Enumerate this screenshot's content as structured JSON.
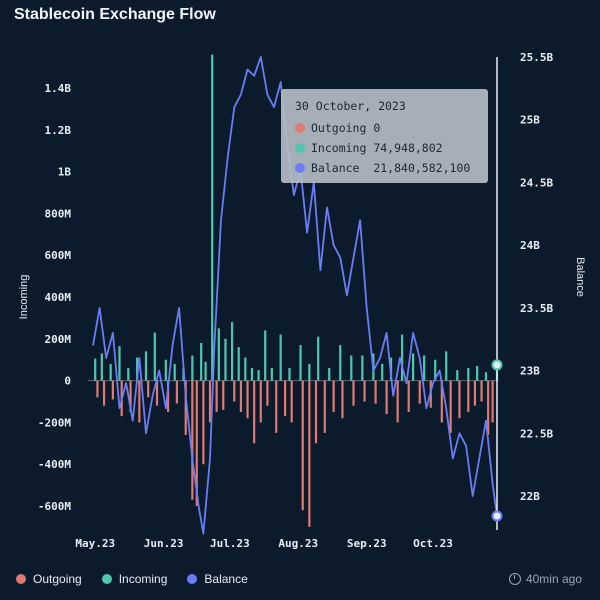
{
  "header": {
    "title": "Stablecoin Exchange Flow"
  },
  "colors": {
    "outgoing": "#e07a73",
    "incoming": "#4fc7b0",
    "balance": "#6a7df5",
    "background": "#0b1b2b"
  },
  "tooltip": {
    "date": "30 October, 2023",
    "rows": [
      {
        "label": "Outgoing",
        "value": "0",
        "color": "#e07a73"
      },
      {
        "label": "Incoming",
        "value": "74,948,802",
        "color": "#4fc7b0"
      },
      {
        "label": "Balance",
        "value": "21,840,582,100",
        "color": "#6a7df5"
      }
    ]
  },
  "legend": {
    "items": [
      {
        "label": "Outgoing",
        "color": "#e07a73"
      },
      {
        "label": "Incoming",
        "color": "#4fc7b0"
      },
      {
        "label": "Balance",
        "color": "#6a7df5"
      }
    ]
  },
  "footer": {
    "updated": "40min ago"
  },
  "chart_data": {
    "type": "bar",
    "title": "Stablecoin Exchange Flow",
    "ylabel": "Incoming",
    "y2label": "Balance",
    "ylim": [
      -700000000,
      1550000000
    ],
    "y2lim": [
      21700000000,
      25500000000
    ],
    "yticks": [
      {
        "v": 1400000000,
        "l": "1.4B"
      },
      {
        "v": 1200000000,
        "l": "1.2B"
      },
      {
        "v": 1000000000,
        "l": "1B"
      },
      {
        "v": 800000000,
        "l": "800M"
      },
      {
        "v": 600000000,
        "l": "600M"
      },
      {
        "v": 400000000,
        "l": "400M"
      },
      {
        "v": 200000000,
        "l": "200M"
      },
      {
        "v": 0,
        "l": "0"
      },
      {
        "v": -200000000,
        "l": "-200M"
      },
      {
        "v": -400000000,
        "l": "-400M"
      },
      {
        "v": -600000000,
        "l": "-600M"
      }
    ],
    "y2ticks": [
      {
        "v": 25500000000,
        "l": "25.5B"
      },
      {
        "v": 25000000000,
        "l": "25B"
      },
      {
        "v": 24500000000,
        "l": "24.5B"
      },
      {
        "v": 24000000000,
        "l": "24B"
      },
      {
        "v": 23500000000,
        "l": "23.5B"
      },
      {
        "v": 23000000000,
        "l": "23B"
      },
      {
        "v": 22500000000,
        "l": "22.5B"
      },
      {
        "v": 22000000000,
        "l": "22B"
      }
    ],
    "xticks": [
      {
        "x": "2023-05-01",
        "l": "May.23"
      },
      {
        "x": "2023-06-01",
        "l": "Jun.23"
      },
      {
        "x": "2023-07-01",
        "l": "Jul.23"
      },
      {
        "x": "2023-08-01",
        "l": "Aug.23"
      },
      {
        "x": "2023-09-01",
        "l": "Sep.23"
      },
      {
        "x": "2023-10-01",
        "l": "Oct.23"
      }
    ],
    "xrange": [
      "2023-04-30",
      "2023-10-30"
    ],
    "highlight": {
      "x": "2023-10-30",
      "incoming": 74948802,
      "outgoing": 0,
      "balance": 21840582100
    },
    "series": [
      {
        "name": "Incoming",
        "type": "bar",
        "points": [
          [
            "2023-05-01",
            105000000
          ],
          [
            "2023-05-04",
            130000000
          ],
          [
            "2023-05-08",
            80000000
          ],
          [
            "2023-05-12",
            165000000
          ],
          [
            "2023-05-16",
            60000000
          ],
          [
            "2023-05-20",
            110000000
          ],
          [
            "2023-05-24",
            140000000
          ],
          [
            "2023-05-28",
            230000000
          ],
          [
            "2023-06-02",
            100000000
          ],
          [
            "2023-06-06",
            80000000
          ],
          [
            "2023-06-10",
            60000000
          ],
          [
            "2023-06-14",
            120000000
          ],
          [
            "2023-06-18",
            180000000
          ],
          [
            "2023-06-20",
            90000000
          ],
          [
            "2023-06-23",
            1560000000
          ],
          [
            "2023-06-26",
            250000000
          ],
          [
            "2023-06-29",
            200000000
          ],
          [
            "2023-07-02",
            280000000
          ],
          [
            "2023-07-05",
            160000000
          ],
          [
            "2023-07-08",
            110000000
          ],
          [
            "2023-07-11",
            60000000
          ],
          [
            "2023-07-14",
            50000000
          ],
          [
            "2023-07-17",
            240000000
          ],
          [
            "2023-07-20",
            60000000
          ],
          [
            "2023-07-24",
            220000000
          ],
          [
            "2023-07-28",
            60000000
          ],
          [
            "2023-08-02",
            170000000
          ],
          [
            "2023-08-06",
            80000000
          ],
          [
            "2023-08-10",
            210000000
          ],
          [
            "2023-08-15",
            60000000
          ],
          [
            "2023-08-20",
            170000000
          ],
          [
            "2023-08-25",
            120000000
          ],
          [
            "2023-08-30",
            120000000
          ],
          [
            "2023-09-04",
            130000000
          ],
          [
            "2023-09-08",
            80000000
          ],
          [
            "2023-09-12",
            110000000
          ],
          [
            "2023-09-17",
            220000000
          ],
          [
            "2023-09-22",
            130000000
          ],
          [
            "2023-09-27",
            120000000
          ],
          [
            "2023-10-02",
            100000000
          ],
          [
            "2023-10-07",
            140000000
          ],
          [
            "2023-10-12",
            50000000
          ],
          [
            "2023-10-17",
            60000000
          ],
          [
            "2023-10-21",
            70000000
          ],
          [
            "2023-10-25",
            40000000
          ],
          [
            "2023-10-30",
            74948802
          ]
        ]
      },
      {
        "name": "Outgoing",
        "type": "bar",
        "points": [
          [
            "2023-05-02",
            -80000000
          ],
          [
            "2023-05-05",
            -120000000
          ],
          [
            "2023-05-09",
            -90000000
          ],
          [
            "2023-05-13",
            -170000000
          ],
          [
            "2023-05-17",
            -150000000
          ],
          [
            "2023-05-21",
            -200000000
          ],
          [
            "2023-05-25",
            -80000000
          ],
          [
            "2023-05-29",
            -120000000
          ],
          [
            "2023-06-03",
            -150000000
          ],
          [
            "2023-06-07",
            -110000000
          ],
          [
            "2023-06-11",
            -260000000
          ],
          [
            "2023-06-14",
            -570000000
          ],
          [
            "2023-06-16",
            -600000000
          ],
          [
            "2023-06-19",
            -400000000
          ],
          [
            "2023-06-22",
            -200000000
          ],
          [
            "2023-06-25",
            -150000000
          ],
          [
            "2023-06-28",
            -140000000
          ],
          [
            "2023-07-03",
            -100000000
          ],
          [
            "2023-07-06",
            -150000000
          ],
          [
            "2023-07-09",
            -180000000
          ],
          [
            "2023-07-12",
            -300000000
          ],
          [
            "2023-07-15",
            -200000000
          ],
          [
            "2023-07-18",
            -120000000
          ],
          [
            "2023-07-22",
            -250000000
          ],
          [
            "2023-07-26",
            -170000000
          ],
          [
            "2023-07-29",
            -200000000
          ],
          [
            "2023-08-03",
            -620000000
          ],
          [
            "2023-08-06",
            -700000000
          ],
          [
            "2023-08-09",
            -300000000
          ],
          [
            "2023-08-13",
            -250000000
          ],
          [
            "2023-08-17",
            -150000000
          ],
          [
            "2023-08-21",
            -180000000
          ],
          [
            "2023-08-26",
            -120000000
          ],
          [
            "2023-08-31",
            -100000000
          ],
          [
            "2023-09-05",
            -110000000
          ],
          [
            "2023-09-10",
            -160000000
          ],
          [
            "2023-09-15",
            -200000000
          ],
          [
            "2023-09-20",
            -150000000
          ],
          [
            "2023-09-25",
            -110000000
          ],
          [
            "2023-09-30",
            -130000000
          ],
          [
            "2023-10-05",
            -200000000
          ],
          [
            "2023-10-09",
            -250000000
          ],
          [
            "2023-10-13",
            -180000000
          ],
          [
            "2023-10-17",
            -150000000
          ],
          [
            "2023-10-20",
            -120000000
          ],
          [
            "2023-10-23",
            -100000000
          ],
          [
            "2023-10-26",
            -260000000
          ],
          [
            "2023-10-28",
            -200000000
          ]
        ]
      },
      {
        "name": "Balance",
        "type": "line",
        "points": [
          [
            "2023-04-30",
            23200000000
          ],
          [
            "2023-05-03",
            23500000000
          ],
          [
            "2023-05-06",
            23100000000
          ],
          [
            "2023-05-09",
            23300000000
          ],
          [
            "2023-05-12",
            22700000000
          ],
          [
            "2023-05-15",
            22900000000
          ],
          [
            "2023-05-18",
            22600000000
          ],
          [
            "2023-05-21",
            23100000000
          ],
          [
            "2023-05-24",
            22500000000
          ],
          [
            "2023-05-27",
            22800000000
          ],
          [
            "2023-05-30",
            23000000000
          ],
          [
            "2023-06-02",
            22700000000
          ],
          [
            "2023-06-05",
            23200000000
          ],
          [
            "2023-06-08",
            23500000000
          ],
          [
            "2023-06-11",
            22800000000
          ],
          [
            "2023-06-14",
            22300000000
          ],
          [
            "2023-06-17",
            21900000000
          ],
          [
            "2023-06-19",
            21700000000
          ],
          [
            "2023-06-22",
            22300000000
          ],
          [
            "2023-06-24",
            23200000000
          ],
          [
            "2023-06-27",
            24200000000
          ],
          [
            "2023-06-30",
            24700000000
          ],
          [
            "2023-07-03",
            25100000000
          ],
          [
            "2023-07-06",
            25200000000
          ],
          [
            "2023-07-09",
            25400000000
          ],
          [
            "2023-07-12",
            25350000000
          ],
          [
            "2023-07-15",
            25500000000
          ],
          [
            "2023-07-18",
            25200000000
          ],
          [
            "2023-07-21",
            25100000000
          ],
          [
            "2023-07-24",
            25300000000
          ],
          [
            "2023-07-27",
            24800000000
          ],
          [
            "2023-07-30",
            24400000000
          ],
          [
            "2023-08-02",
            24600000000
          ],
          [
            "2023-08-05",
            24100000000
          ],
          [
            "2023-08-08",
            24500000000
          ],
          [
            "2023-08-11",
            23800000000
          ],
          [
            "2023-08-14",
            24300000000
          ],
          [
            "2023-08-17",
            24000000000
          ],
          [
            "2023-08-20",
            23900000000
          ],
          [
            "2023-08-23",
            23600000000
          ],
          [
            "2023-08-26",
            23900000000
          ],
          [
            "2023-08-29",
            24200000000
          ],
          [
            "2023-09-01",
            23500000000
          ],
          [
            "2023-09-04",
            23000000000
          ],
          [
            "2023-09-07",
            23100000000
          ],
          [
            "2023-09-10",
            23300000000
          ],
          [
            "2023-09-13",
            22800000000
          ],
          [
            "2023-09-16",
            23100000000
          ],
          [
            "2023-09-19",
            22900000000
          ],
          [
            "2023-09-22",
            23300000000
          ],
          [
            "2023-09-25",
            23100000000
          ],
          [
            "2023-09-28",
            22700000000
          ],
          [
            "2023-10-01",
            22900000000
          ],
          [
            "2023-10-04",
            23000000000
          ],
          [
            "2023-10-07",
            22700000000
          ],
          [
            "2023-10-10",
            22300000000
          ],
          [
            "2023-10-13",
            22500000000
          ],
          [
            "2023-10-16",
            22400000000
          ],
          [
            "2023-10-19",
            22000000000
          ],
          [
            "2023-10-22",
            22300000000
          ],
          [
            "2023-10-25",
            22600000000
          ],
          [
            "2023-10-28",
            22100000000
          ],
          [
            "2023-10-30",
            21840582100
          ]
        ]
      }
    ]
  }
}
